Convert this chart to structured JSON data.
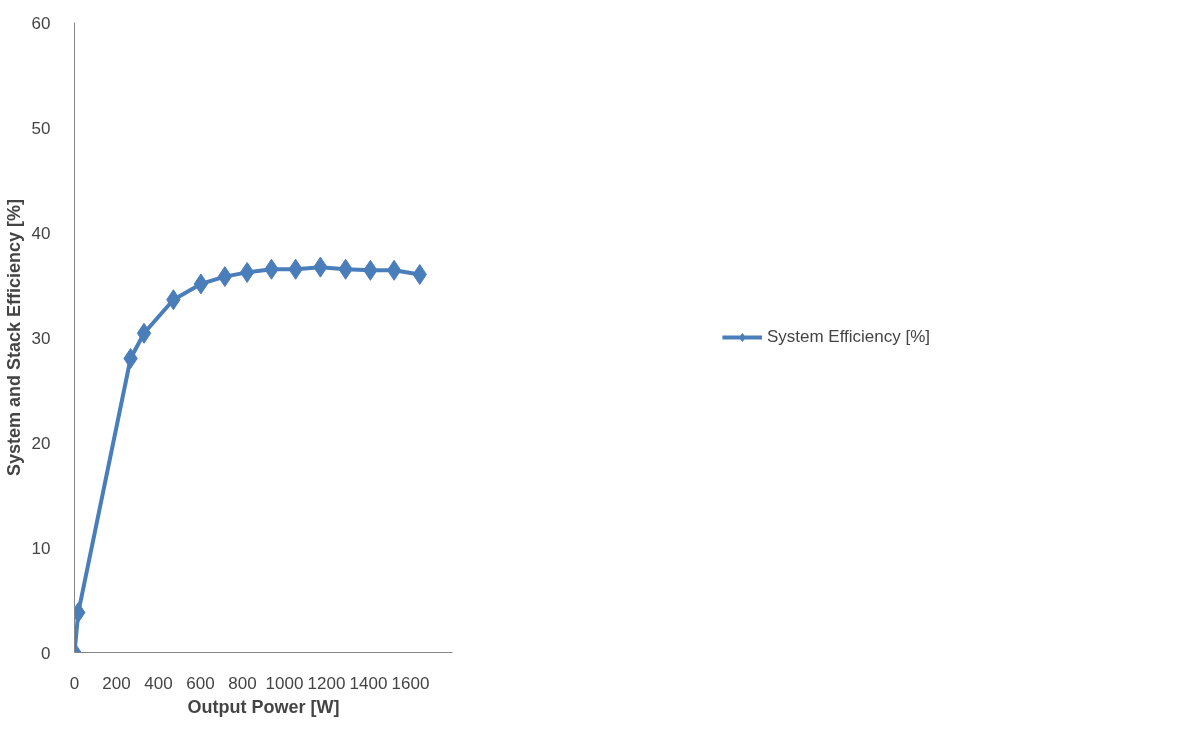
{
  "chart_data": {
    "type": "line",
    "xlabel": "Output Power [W]",
    "ylabel": "System and Stack Efficiency [%]",
    "x": [
      0,
      18,
      267,
      331,
      471,
      602,
      716,
      822,
      938,
      1053,
      1171,
      1291,
      1409,
      1522,
      1644
    ],
    "series": [
      {
        "name": "System Efficiency [%]",
        "color": "#4a7ebb",
        "values": [
          0,
          3.8,
          28.0,
          30.4,
          33.6,
          35.1,
          35.8,
          36.2,
          36.5,
          36.5,
          36.7,
          36.5,
          36.4,
          36.4,
          36.0
        ]
      }
    ],
    "xlim": [
      0,
      1800
    ],
    "xticks": [
      0,
      200,
      400,
      600,
      800,
      1000,
      1200,
      1400,
      1600
    ],
    "ylim": [
      0,
      60
    ],
    "yticks": [
      0,
      10,
      20,
      30,
      40,
      50,
      60
    ],
    "grid": false,
    "legend": "right",
    "marker": "diamond",
    "line_style": "solid"
  }
}
